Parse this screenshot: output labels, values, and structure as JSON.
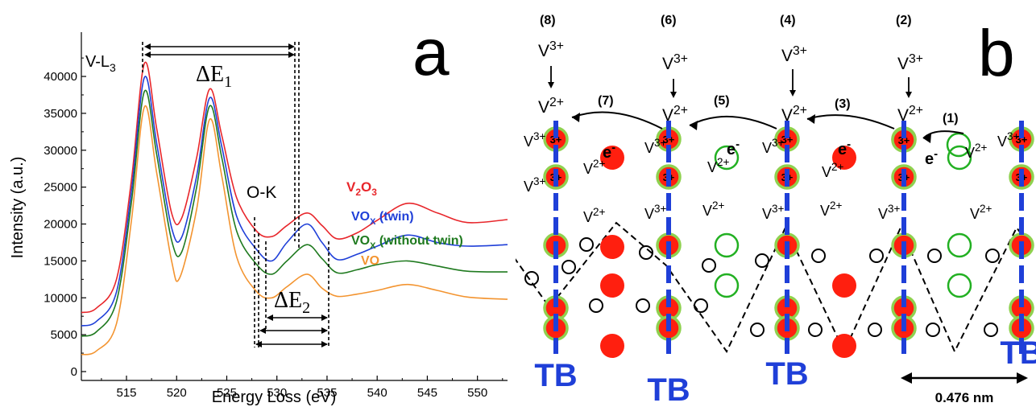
{
  "panel_a": {
    "letter": "a",
    "chart_data": {
      "type": "line",
      "xlabel": "Energy Loss (eV)",
      "ylabel": "Intensity (a.u.)",
      "xlim": [
        510.5,
        553
      ],
      "ylim": [
        -1200,
        46000
      ],
      "xticks": [
        515,
        520,
        525,
        530,
        535,
        540,
        545,
        550
      ],
      "yticks": [
        0,
        5000,
        10000,
        15000,
        20000,
        25000,
        30000,
        35000,
        40000
      ],
      "grid": false,
      "legend": "inline-right",
      "series": [
        {
          "name": "V2O3",
          "label_main": "V",
          "sub1": "2",
          "mid": "O",
          "sub2": "3",
          "color": "#e8262b",
          "points": [
            [
              510.5,
              8000
            ],
            [
              512,
              8600
            ],
            [
              514,
              12500
            ],
            [
              515.5,
              26000
            ],
            [
              516.8,
              41800
            ],
            [
              518,
              33000
            ],
            [
              519.5,
              21500
            ],
            [
              520.5,
              20800
            ],
            [
              522,
              29000
            ],
            [
              523.3,
              38300
            ],
            [
              524.5,
              32000
            ],
            [
              526,
              23500
            ],
            [
              528,
              19000
            ],
            [
              529.5,
              18300
            ],
            [
              531,
              19800
            ],
            [
              533,
              21500
            ],
            [
              534.5,
              19800
            ],
            [
              536,
              18000
            ],
            [
              538,
              18800
            ],
            [
              540,
              20500
            ],
            [
              543,
              22800
            ],
            [
              546,
              21500
            ],
            [
              549,
              20200
            ],
            [
              553,
              20600
            ]
          ]
        },
        {
          "name": "VOx (twin)",
          "label_main": "VO",
          "sub1": "X",
          "tail": " (twin)",
          "color": "#1f3fd8",
          "points": [
            [
              510.5,
              6200
            ],
            [
              512,
              6800
            ],
            [
              514,
              10800
            ],
            [
              515.5,
              24500
            ],
            [
              516.8,
              39900
            ],
            [
              518,
              31000
            ],
            [
              519.5,
              19500
            ],
            [
              520.5,
              18200
            ],
            [
              522,
              26500
            ],
            [
              523.3,
              37100
            ],
            [
              524.5,
              30500
            ],
            [
              526,
              21000
            ],
            [
              528,
              16500
            ],
            [
              529.5,
              15000
            ],
            [
              531,
              17500
            ],
            [
              533,
              20000
            ],
            [
              534.5,
              17500
            ],
            [
              536,
              15200
            ],
            [
              538,
              15900
            ],
            [
              540,
              17000
            ],
            [
              543,
              18500
            ],
            [
              546,
              17500
            ],
            [
              549,
              17000
            ],
            [
              553,
              17200
            ]
          ]
        },
        {
          "name": "VOx (without twin)",
          "label_main": "VO",
          "sub1": "X",
          "tail": " (without twin)",
          "color": "#1f7a1f",
          "points": [
            [
              510.5,
              4800
            ],
            [
              512,
              5400
            ],
            [
              514,
              9500
            ],
            [
              515.5,
              23000
            ],
            [
              516.8,
              38000
            ],
            [
              518,
              29500
            ],
            [
              519.5,
              17800
            ],
            [
              520.5,
              16200
            ],
            [
              522,
              25000
            ],
            [
              523.3,
              36000
            ],
            [
              524.5,
              29000
            ],
            [
              526,
              19000
            ],
            [
              528,
              14500
            ],
            [
              529.5,
              13200
            ],
            [
              531,
              15000
            ],
            [
              533,
              17200
            ],
            [
              534.5,
              15300
            ],
            [
              536,
              13400
            ],
            [
              538,
              13800
            ],
            [
              540,
              14500
            ],
            [
              543,
              15000
            ],
            [
              546,
              14300
            ],
            [
              549,
              13600
            ],
            [
              553,
              13500
            ]
          ]
        },
        {
          "name": "VO",
          "label_main": "VO",
          "color": "#f39430",
          "points": [
            [
              510.5,
              2300
            ],
            [
              512,
              2800
            ],
            [
              514,
              6500
            ],
            [
              515.5,
              20500
            ],
            [
              516.8,
              35900
            ],
            [
              518,
              27000
            ],
            [
              519.5,
              15000
            ],
            [
              520.3,
              12700
            ],
            [
              522,
              22000
            ],
            [
              523.3,
              34200
            ],
            [
              524.5,
              26500
            ],
            [
              526,
              15500
            ],
            [
              528,
              10800
            ],
            [
              529.5,
              10000
            ],
            [
              531,
              11500
            ],
            [
              533,
              13200
            ],
            [
              534.5,
              11300
            ],
            [
              536,
              10200
            ],
            [
              538,
              10500
            ],
            [
              540,
              11000
            ],
            [
              543,
              11800
            ],
            [
              546,
              11000
            ],
            [
              549,
              10100
            ],
            [
              553,
              9800
            ]
          ]
        }
      ]
    },
    "labels": {
      "vl3_main": "V-L",
      "vl3_sub": "3",
      "de1_main": "ΔE",
      "de1_sub": "1",
      "ok": "O-K",
      "de2_main": "ΔE",
      "de2_sub": "2"
    }
  },
  "panel_b": {
    "letter": "b",
    "tb_label": "TB",
    "scale": "0.476 nm",
    "electron": "e",
    "electron_sup": "-",
    "v_main": "V",
    "sup3": "3+",
    "sup2": "2+",
    "cell_label": "3+",
    "step_labels": [
      "(1)",
      "(2)",
      "(3)",
      "(4)",
      "(5)",
      "(6)",
      "(7)",
      "(8)"
    ],
    "colors": {
      "red": "#ff1f0f",
      "green": "#22b022",
      "blue": "#1f3fd8"
    }
  }
}
